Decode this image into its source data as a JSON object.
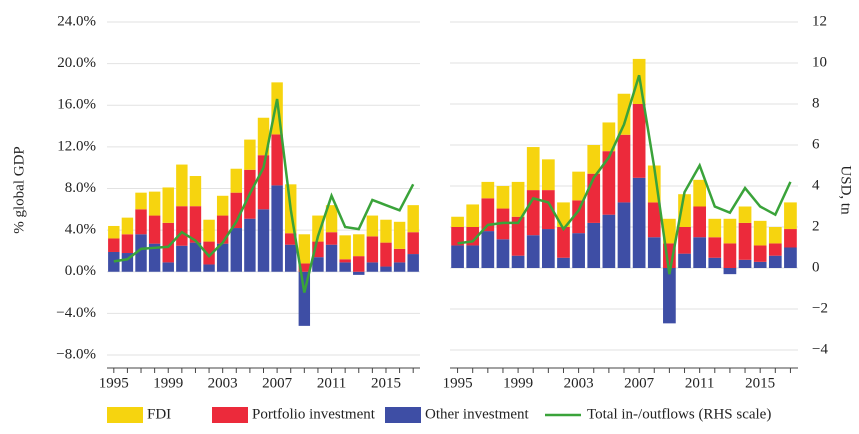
{
  "chart_data": [
    {
      "type": "bar",
      "stacked": true,
      "ylabel": "% global GDP",
      "categories": [
        "1995",
        null,
        null,
        null,
        "1999",
        null,
        null,
        null,
        "2003",
        null,
        null,
        null,
        "2007",
        null,
        null,
        null,
        "2011",
        null,
        null,
        null,
        "2015",
        null,
        null
      ],
      "ylim": [
        -8,
        24
      ],
      "yticks": [
        {
          "value": -8,
          "label": "−8.0%"
        },
        {
          "value": -4,
          "label": "−4.0%"
        },
        {
          "value": 0,
          "label": "0.0%"
        },
        {
          "value": 4,
          "label": "4.0%"
        },
        {
          "value": 8,
          "label": "8.0%"
        },
        {
          "value": 12,
          "label": "12.0%"
        },
        {
          "value": 16,
          "label": "16.0%"
        },
        {
          "value": 20,
          "label": "20.0%"
        },
        {
          "value": 24,
          "label": "24.0%"
        }
      ],
      "grid": true,
      "series": [
        {
          "name": "FDI",
          "color": "#f6d40f",
          "values": [
            1.2,
            1.6,
            1.6,
            2.3,
            3.4,
            4.0,
            2.9,
            2.1,
            1.9,
            2.3,
            2.9,
            3.6,
            5.0,
            4.7,
            2.8,
            2.5,
            2.6,
            2.3,
            2.1,
            2.0,
            2.2,
            2.6,
            2.6
          ]
        },
        {
          "name": "Portfolio investment",
          "color": "#ec2a3b",
          "values": [
            1.3,
            1.8,
            2.4,
            2.7,
            3.8,
            3.8,
            3.5,
            2.2,
            2.7,
            3.4,
            4.7,
            5.2,
            4.9,
            1.1,
            0.8,
            1.5,
            1.2,
            0.3,
            1.5,
            2.5,
            2.3,
            1.3,
            2.1
          ]
        },
        {
          "name": "Other investment",
          "color": "#3e4ea5",
          "values": [
            1.9,
            1.8,
            3.6,
            2.7,
            0.9,
            2.5,
            2.8,
            0.7,
            2.7,
            4.2,
            5.1,
            6.0,
            8.3,
            2.6,
            -5.2,
            1.4,
            2.6,
            0.9,
            -0.3,
            0.9,
            0.5,
            0.9,
            1.7
          ]
        },
        {
          "name": "Total in-/outflows (RHS scale)",
          "color": "#3aa33a",
          "type": "line",
          "values": [
            1.0,
            1.2,
            2.2,
            2.3,
            2.4,
            3.8,
            3.0,
            1.5,
            2.8,
            4.8,
            7.5,
            10.0,
            16.6,
            6.0,
            -2.0,
            3.4,
            7.3,
            4.3,
            4.1,
            6.9,
            6.4,
            5.9,
            8.4
          ]
        }
      ]
    },
    {
      "type": "bar",
      "stacked": true,
      "ylabel": "USD, tn",
      "categories": [
        "1995",
        null,
        null,
        null,
        "1999",
        null,
        null,
        null,
        "2003",
        null,
        null,
        null,
        "2007",
        null,
        null,
        null,
        "2011",
        null,
        null,
        null,
        "2015",
        null,
        null
      ],
      "ylim": [
        -4,
        12
      ],
      "yticks": [
        {
          "value": -4,
          "label": "−4"
        },
        {
          "value": -2,
          "label": "−2"
        },
        0,
        2,
        4,
        6,
        8,
        10,
        12
      ],
      "grid": true,
      "series": [
        {
          "values": [
            0.5,
            1.1,
            0.8,
            1.1,
            1.7,
            2.1,
            1.5,
            1.2,
            1.4,
            1.4,
            1.4,
            2.0,
            2.2,
            1.8,
            1.2,
            1.6,
            1.3,
            0.9,
            1.2,
            0.8,
            1.2,
            0.8,
            1.3
          ]
        },
        {
          "values": [
            0.9,
            0.9,
            1.6,
            1.5,
            1.9,
            2.2,
            1.9,
            1.5,
            1.6,
            2.4,
            3.1,
            3.3,
            3.6,
            1.7,
            1.2,
            1.3,
            1.5,
            1.0,
            1.2,
            1.8,
            0.8,
            0.6,
            0.9
          ]
        },
        {
          "values": [
            1.1,
            1.1,
            1.8,
            1.4,
            0.6,
            1.6,
            1.9,
            0.5,
            1.7,
            2.2,
            2.6,
            3.2,
            4.4,
            1.5,
            -2.7,
            0.7,
            1.5,
            0.5,
            -0.3,
            0.4,
            0.3,
            0.6,
            1.0
          ]
        },
        {
          "type": "line",
          "values": [
            1.2,
            1.3,
            2.1,
            2.2,
            2.2,
            3.4,
            3.2,
            1.9,
            2.8,
            4.4,
            5.4,
            7.0,
            9.4,
            4.9,
            -0.3,
            3.7,
            5.0,
            3.0,
            2.7,
            3.9,
            3.0,
            2.6,
            4.2
          ]
        }
      ]
    }
  ]
}
